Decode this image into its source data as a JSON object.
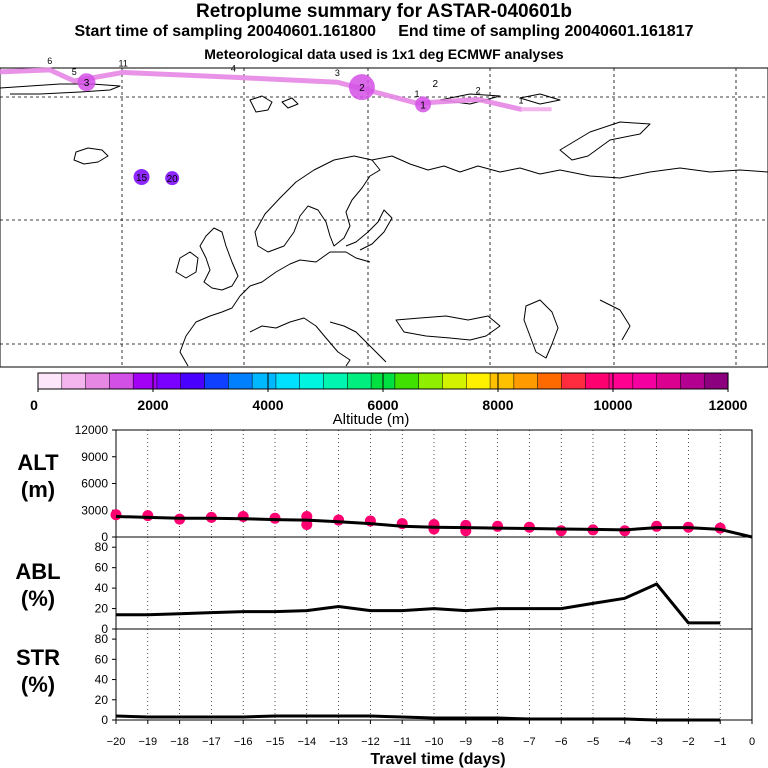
{
  "header": {
    "title": "Retroplume summary for ASTAR-040601b",
    "line2": "Start time of sampling 20040601.161800     End time of sampling 20040601.161817",
    "line3": "Meteorological data used is 1x1 deg ECMWF analyses"
  },
  "map": {
    "track": [
      {
        "lon": -52,
        "lat": 84.2,
        "label": "6"
      },
      {
        "lon": -48,
        "lat": 83.3,
        "label": "5"
      },
      {
        "lon": -40,
        "lat": 84.0,
        "label": "11"
      },
      {
        "lon": -22,
        "lat": 83.6,
        "label": "4"
      },
      {
        "lon": -5,
        "lat": 83.2,
        "label": "3"
      },
      {
        "lon": 8,
        "lat": 81.5,
        "label": "1"
      },
      {
        "lon": 18,
        "lat": 81.8,
        "label": "2"
      },
      {
        "lon": 25,
        "lat": 81.0,
        "label": "1"
      }
    ],
    "clusters": [
      {
        "lon": -46,
        "lat": 83.2,
        "label": "3"
      },
      {
        "lon": -1,
        "lat": 82.8,
        "label": "2"
      },
      {
        "lon": 9,
        "lat": 81.4,
        "label": "1"
      },
      {
        "lon": -37,
        "lat": 75.5,
        "label": "15"
      },
      {
        "lon": -32,
        "lat": 75.4,
        "label": "20"
      }
    ],
    "track_label": "2"
  },
  "colorbar": {
    "colors": [
      "#fde6fa",
      "#f4b4ee",
      "#e687e4",
      "#d350e6",
      "#a300f6",
      "#7a00ff",
      "#4a00ff",
      "#1040ff",
      "#0080ff",
      "#00b8ff",
      "#00e0ff",
      "#00f5e0",
      "#00f5b0",
      "#00ee80",
      "#00e040",
      "#40e000",
      "#90ee00",
      "#d2f200",
      "#fff000",
      "#ffc000",
      "#ff9a00",
      "#ff6a00",
      "#ff2c40",
      "#ff0070",
      "#ff0090",
      "#f400a0",
      "#dc0090",
      "#b40090",
      "#8c0080"
    ],
    "tick_labels": [
      "0",
      "2000",
      "4000",
      "6000",
      "8000",
      "10000",
      "12000"
    ],
    "label": "Altitude (m)"
  },
  "chart_data": [
    {
      "type": "line",
      "panel": "ALT",
      "ylabel_line1": "ALT",
      "ylabel_line2": "(m)",
      "ylim": [
        0,
        12000
      ],
      "yticks": [
        0,
        3000,
        6000,
        9000,
        12000
      ],
      "xlim": [
        -20,
        0
      ],
      "x": [
        -20,
        -19,
        -18,
        -17,
        -16,
        -15,
        -14,
        -13,
        -12,
        -11,
        -10,
        -9,
        -8,
        -7,
        -6,
        -5,
        -4,
        -3,
        -2,
        -1,
        0
      ],
      "values": [
        2300,
        2200,
        2100,
        2100,
        2050,
        1950,
        1900,
        1700,
        1500,
        1200,
        1100,
        1050,
        1000,
        950,
        900,
        850,
        800,
        1050,
        1050,
        850,
        0
      ],
      "scatter": [
        {
          "x": -20,
          "y": 2500
        },
        {
          "x": -19,
          "y": 2400
        },
        {
          "x": -18,
          "y": 2000
        },
        {
          "x": -17,
          "y": 2200
        },
        {
          "x": -16,
          "y": 2300
        },
        {
          "x": -15,
          "y": 2100
        },
        {
          "x": -14,
          "y": 2300
        },
        {
          "x": -14,
          "y": 1400
        },
        {
          "x": -13,
          "y": 1900
        },
        {
          "x": -12,
          "y": 1800
        },
        {
          "x": -11,
          "y": 1500
        },
        {
          "x": -10,
          "y": 1400
        },
        {
          "x": -10,
          "y": 900
        },
        {
          "x": -9,
          "y": 1300
        },
        {
          "x": -9,
          "y": 700
        },
        {
          "x": -8,
          "y": 1200
        },
        {
          "x": -7,
          "y": 1100
        },
        {
          "x": -6,
          "y": 700
        },
        {
          "x": -5,
          "y": 800
        },
        {
          "x": -4,
          "y": 700
        },
        {
          "x": -3,
          "y": 1200
        },
        {
          "x": -2,
          "y": 1100
        },
        {
          "x": -1,
          "y": 1000
        }
      ]
    },
    {
      "type": "line",
      "panel": "ABL",
      "ylabel_line1": "ABL",
      "ylabel_line2": "(%)",
      "ylim": [
        0,
        90
      ],
      "yticks": [
        0,
        20,
        40,
        60,
        80
      ],
      "xlim": [
        -20,
        0
      ],
      "x": [
        -20,
        -19,
        -18,
        -17,
        -16,
        -15,
        -14,
        -13,
        -12,
        -11,
        -10,
        -9,
        -8,
        -7,
        -6,
        -5,
        -4,
        -3,
        -2,
        -1
      ],
      "values": [
        14,
        14,
        15,
        16,
        17,
        17,
        18,
        22,
        18,
        18,
        20,
        18,
        20,
        20,
        20,
        25,
        30,
        44,
        6,
        6
      ]
    },
    {
      "type": "line",
      "panel": "STR",
      "ylabel_line1": "STR",
      "ylabel_line2": "(%)",
      "ylim": [
        0,
        90
      ],
      "yticks": [
        0,
        20,
        40,
        60,
        80
      ],
      "xlim": [
        -20,
        0
      ],
      "x": [
        -20,
        -19,
        -18,
        -17,
        -16,
        -15,
        -14,
        -13,
        -12,
        -11,
        -10,
        -9,
        -8,
        -7,
        -6,
        -5,
        -4,
        -3,
        -2,
        -1
      ],
      "values": [
        4,
        3,
        3,
        3,
        3,
        4,
        4,
        4,
        4,
        3,
        2,
        2,
        2,
        1,
        1,
        1,
        1,
        0,
        0,
        0
      ],
      "xticks": [
        -20,
        -19,
        -18,
        -17,
        -16,
        -15,
        -14,
        -13,
        -12,
        -11,
        -10,
        -9,
        -8,
        -7,
        -6,
        -5,
        -4,
        -3,
        -2,
        -1,
        0
      ],
      "xlabel": "Travel time (days)"
    }
  ]
}
